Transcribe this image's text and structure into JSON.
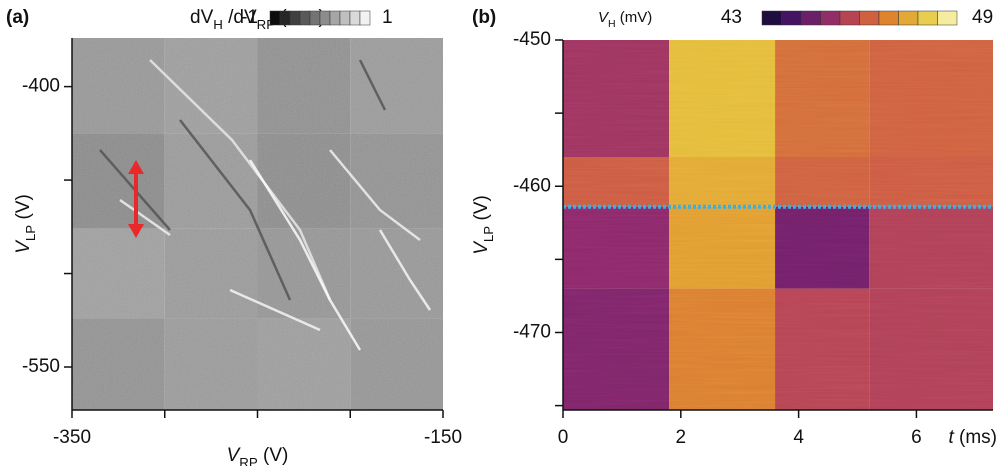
{
  "chart_data": [
    {
      "type": "heatmap",
      "panel_label": "(a)",
      "xlabel": [
        {
          "text": "V",
          "italic": true
        },
        {
          "text": "RP",
          "sub": true
        },
        {
          "text": " (V)"
        }
      ],
      "ylabel": [
        {
          "text": "V",
          "italic": true
        },
        {
          "text": "LP",
          "sub": true
        },
        {
          "text": " (V)"
        }
      ],
      "colorbar_label": [
        {
          "text": "dV"
        },
        {
          "text": "H",
          "sub": true
        },
        {
          "text": " /dV"
        },
        {
          "text": "RP",
          "sub": true
        },
        {
          "text": " (a.u.)"
        }
      ],
      "clim": [
        -1,
        1
      ],
      "colormap": [
        "#000000",
        "#ffffff"
      ],
      "xlim": [
        -350,
        -150
      ],
      "ylim": [
        -573,
        -374
      ],
      "xticks": [
        -350,
        -150
      ],
      "xminor": [
        -300,
        -250,
        -200
      ],
      "yticks": [
        -400,
        -550
      ],
      "yminor": [
        -450,
        -500
      ],
      "tile_x": [
        -350,
        -300,
        -250,
        -200,
        -150
      ],
      "tile_y": [
        -374,
        -425,
        -476,
        -524,
        -573
      ],
      "tiles": [
        [
          0.18,
          0.22,
          0.12,
          0.2
        ],
        [
          0.08,
          0.2,
          0.1,
          0.14
        ],
        [
          0.24,
          0.2,
          0.16,
          0.18
        ],
        [
          0.14,
          0.2,
          0.22,
          0.16
        ]
      ]
    },
    {
      "type": "heatmap",
      "panel_label": "(b)",
      "xlabel": [
        {
          "text": "t",
          "italic": true
        },
        {
          "text": " (ms)"
        }
      ],
      "ylabel": [
        {
          "text": "V",
          "italic": true
        },
        {
          "text": "LP",
          "sub": true
        },
        {
          "text": " (V)"
        }
      ],
      "colorbar_label": [
        {
          "text": "V",
          "italic": true
        },
        {
          "text": "H",
          "sub": true
        },
        {
          "text": " (mV)"
        }
      ],
      "clim": [
        43,
        49
      ],
      "colormap": [
        "#0d0a2e",
        "#4a1468",
        "#8c2a6a",
        "#c8504a",
        "#e08a2c",
        "#e6c840",
        "#fbfbc8"
      ],
      "xlim": [
        0,
        7.3
      ],
      "ylim": [
        -475.3,
        -450
      ],
      "xticks": [
        0,
        2,
        4,
        6
      ],
      "yticks": [
        -450,
        -460,
        -470
      ],
      "yminor": [
        -455,
        -465,
        -475
      ],
      "x_edges": [
        0,
        1.8,
        3.6,
        5.2,
        7.3
      ],
      "y_edges": [
        -450,
        -458,
        -461.4,
        -467,
        -475.3
      ],
      "values": [
        [
          45.3,
          47.8,
          46.5,
          46.3
        ],
        [
          46.2,
          47.5,
          46.3,
          46.2
        ],
        [
          45.0,
          47.3,
          44.6,
          45.6
        ],
        [
          44.8,
          46.8,
          45.7,
          45.6
        ]
      ],
      "hline": -461.4,
      "hline_color": "#3ab0e0"
    }
  ]
}
